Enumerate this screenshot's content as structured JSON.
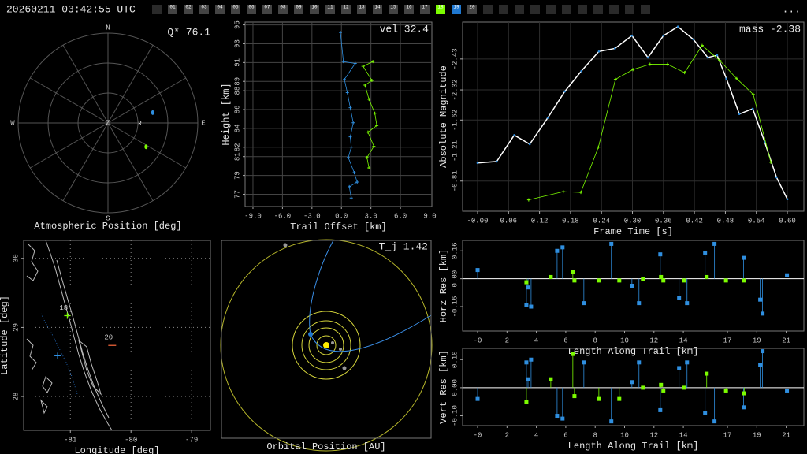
{
  "header": {
    "timestamp": "20260211 03:42:55 UTC",
    "stations": [
      {
        "label": "01"
      },
      {
        "label": "02"
      },
      {
        "label": "03"
      },
      {
        "label": "04"
      },
      {
        "label": "05"
      },
      {
        "label": "06"
      },
      {
        "label": "07"
      },
      {
        "label": "08"
      },
      {
        "label": "09"
      },
      {
        "label": "10"
      },
      {
        "label": "11"
      },
      {
        "label": "12"
      },
      {
        "label": "13"
      },
      {
        "label": "14"
      },
      {
        "label": "15"
      },
      {
        "label": "16"
      },
      {
        "label": "17"
      },
      {
        "label": "18",
        "color": "#7cfc00"
      },
      {
        "label": "19",
        "color": "#1f78d1"
      },
      {
        "label": "20"
      }
    ],
    "menu": "..."
  },
  "chart_data": [
    {
      "type": "polar",
      "title": "Atmospheric Position [deg]",
      "annotation": "Q* 76.1",
      "directions": [
        "N",
        "E",
        "S",
        "W"
      ],
      "zenith": "Z",
      "radiant": {
        "label": "R",
        "azimuth": 91,
        "altitude": 58
      },
      "series": [
        {
          "color": "#2f8fe0",
          "azimuth": [
            77
          ],
          "altitude": [
            44
          ]
        },
        {
          "color": "#7cfc00",
          "azimuth": [
            122
          ],
          "altitude": [
            45
          ]
        }
      ]
    },
    {
      "type": "line",
      "annotation": "vel 32.4",
      "xlabel": "Trail Offset [km]",
      "ylabel": "Height [km]",
      "xlim": [
        -9.8,
        9.2
      ],
      "ylim": [
        75.7,
        95.3
      ],
      "xticks": [
        {
          "value": -9,
          "label": "-9.0"
        },
        {
          "value": -6,
          "label": "-6.0"
        },
        {
          "value": -3,
          "label": "-3.0"
        },
        {
          "value": 0,
          "label": "0.0"
        },
        {
          "value": 3,
          "label": "3.0"
        },
        {
          "value": 6,
          "label": "6.0"
        },
        {
          "value": 9,
          "label": "9.0"
        }
      ],
      "yticks": [
        77,
        79,
        81,
        82,
        84,
        86,
        88,
        89,
        91,
        93,
        95
      ],
      "grid": true,
      "series": [
        {
          "color": "#2f8fe0",
          "x": [
            -0.1,
            0.2,
            1.4,
            0.3,
            0.6,
            0.9,
            1.2,
            0.9,
            1.0,
            0.7,
            1.3,
            1.6,
            0.8,
            1.0
          ],
          "values": [
            94.2,
            91.1,
            90.9,
            89.2,
            87.8,
            86.2,
            84.6,
            83.1,
            82.0,
            80.9,
            79.3,
            78.3,
            77.8,
            76.6
          ]
        },
        {
          "color": "#7cfc00",
          "x": [
            3.2,
            2.2,
            3.1,
            2.4,
            2.8,
            3.4,
            3.6,
            2.7,
            3.3,
            2.6,
            2.8
          ],
          "values": [
            91.1,
            90.6,
            89.1,
            88.6,
            87.1,
            85.6,
            84.3,
            83.6,
            82.1,
            80.9,
            79.8
          ]
        }
      ]
    },
    {
      "type": "line",
      "annotation": "mass -2.38",
      "xlabel": "Frame Time [s]",
      "ylabel": "Absolute Magnitude",
      "xlim": [
        -0.029,
        0.632
      ],
      "ylim": [
        -0.41,
        -2.92
      ],
      "xticks": [
        {
          "value": 0,
          "label": "-0.00"
        },
        0.06,
        0.12,
        0.18,
        0.24,
        {
          "value": 0.3,
          "label": "0.30"
        },
        0.36,
        0.42,
        0.48,
        0.54,
        {
          "value": 0.6,
          "label": "0.60"
        }
      ],
      "yticks": [
        -2.43,
        -2.02,
        -1.62,
        -1.21,
        -0.81
      ],
      "grid": true,
      "series": [
        {
          "color": "#ffffff",
          "marker_color": "#2f8fe0",
          "x": [
            0,
            0.037,
            0.071,
            0.101,
            0.136,
            0.169,
            0.201,
            0.235,
            0.266,
            0.299,
            0.33,
            0.36,
            0.388,
            0.418,
            0.446,
            0.464,
            0.482,
            0.507,
            0.533,
            0.556,
            0.579,
            0.6
          ],
          "values": [
            -1.05,
            -1.07,
            -1.42,
            -1.3,
            -1.65,
            -2.0,
            -2.27,
            -2.53,
            -2.57,
            -2.74,
            -2.45,
            -2.74,
            -2.86,
            -2.69,
            -2.45,
            -2.48,
            -2.17,
            -1.7,
            -1.77,
            -1.33,
            -0.86,
            -0.57
          ]
        },
        {
          "color": "#7cfc00",
          "x": [
            0.099,
            0.166,
            0.2,
            0.234,
            0.267,
            0.301,
            0.334,
            0.368,
            0.401,
            0.435,
            0.469,
            0.502,
            0.534,
            0.568
          ],
          "values": [
            -0.56,
            -0.67,
            -0.66,
            -1.26,
            -2.16,
            -2.29,
            -2.36,
            -2.36,
            -2.25,
            -2.61,
            -2.41,
            -2.17,
            -1.96,
            -1.06
          ]
        }
      ]
    },
    {
      "type": "scatter",
      "xlabel": "Longitude [deg]",
      "ylabel": "Latitude [deg]",
      "xlim": [
        -81.77,
        -78.69
      ],
      "ylim": [
        27.51,
        30.26
      ],
      "xticks": [
        -81,
        -80,
        -79
      ],
      "yticks": [
        28,
        29,
        30
      ],
      "grid": true,
      "series": [
        {
          "color": "#7cfc00",
          "marker": "+",
          "x": [
            -81.05
          ],
          "values": [
            29.17
          ],
          "labels": [
            "18"
          ]
        },
        {
          "color": "#2f8fe0",
          "marker": "+",
          "x": [
            -81.21
          ],
          "values": [
            28.59
          ]
        },
        {
          "color": "#ff6a3d",
          "marker": "-",
          "x": [
            -80.31
          ],
          "values": [
            28.74
          ],
          "labels": [
            "20"
          ]
        }
      ]
    },
    {
      "type": "orbit",
      "title": "Orbital Position [AU]",
      "annotation": "T_j 1.42"
    },
    {
      "type": "stem",
      "xlabel": "Length Along Trail [km]",
      "ylabel": "Horz Res [km]",
      "xlim": [
        -1.02,
        22.2
      ],
      "ylim": [
        -0.3,
        0.22
      ],
      "xticks": [
        {
          "value": 0,
          "label": "-0"
        },
        2,
        4,
        6,
        8,
        10,
        12,
        14,
        17,
        19,
        21
      ],
      "yticks": [
        -0.16,
        {
          "value": 0,
          "label": "0.00"
        },
        0.16
      ],
      "series": [
        {
          "color": "#2f8fe0",
          "x": [
            0,
            3.32,
            3.43,
            3.64,
            5.41,
            5.78,
            7.23,
            9.1,
            10.5,
            10.98,
            12.43,
            13.71,
            14.25,
            15.48,
            16.12,
            18.1,
            19.23,
            19.39,
            21.05
          ],
          "values": [
            0.05,
            -0.15,
            -0.05,
            -0.16,
            0.16,
            0.18,
            -0.14,
            0.2,
            -0.04,
            -0.14,
            0.14,
            -0.11,
            -0.14,
            0.15,
            0.2,
            0.12,
            -0.12,
            -0.2,
            0.02
          ]
        },
        {
          "color": "#7cfc00",
          "x": [
            3.32,
            4.98,
            6.48,
            6.59,
            8.25,
            9.64,
            11.25,
            12.48,
            12.64,
            14.03,
            15.59,
            16.9,
            18.14
          ],
          "values": [
            -0.02,
            0.01,
            0.04,
            -0.01,
            -0.01,
            -0.01,
            0,
            0.01,
            -0.01,
            -0.01,
            0.01,
            -0.01,
            -0.01
          ]
        }
      ]
    },
    {
      "type": "stem",
      "xlabel": "Length Along Trail [km]",
      "ylabel": "Vert Res [km]",
      "xlim": [
        -1.02,
        22.2
      ],
      "ylim": [
        -0.135,
        0.14
      ],
      "xticks": [
        {
          "value": 0,
          "label": "-0"
        },
        2,
        4,
        6,
        8,
        10,
        12,
        14,
        17,
        19,
        21
      ],
      "yticks": [
        {
          "value": -0.1,
          "label": "-0.10"
        },
        {
          "value": 0,
          "label": "0.00"
        },
        {
          "value": 0.1,
          "label": "0.10"
        }
      ],
      "series": [
        {
          "color": "#2f8fe0",
          "x": [
            0,
            3.32,
            3.43,
            3.64,
            5.41,
            5.78,
            7.23,
            9.1,
            10.5,
            10.98,
            12.43,
            13.71,
            14.25,
            15.48,
            16.12,
            18.1,
            19.23,
            19.39,
            21.05
          ],
          "values": [
            -0.04,
            0.09,
            0.03,
            0.1,
            -0.1,
            -0.11,
            0.09,
            -0.12,
            0.02,
            0.09,
            -0.08,
            0.07,
            0.09,
            -0.09,
            -0.12,
            -0.07,
            0.08,
            0.13,
            -0.01
          ]
        },
        {
          "color": "#7cfc00",
          "x": [
            3.32,
            4.98,
            6.48,
            6.59,
            8.25,
            9.64,
            11.25,
            12.48,
            12.64,
            14.03,
            15.59,
            16.9,
            18.14
          ],
          "values": [
            -0.05,
            0.03,
            0.12,
            -0.03,
            -0.04,
            -0.04,
            0,
            0.01,
            -0.01,
            0,
            0.05,
            -0.01,
            -0.02
          ]
        }
      ]
    }
  ]
}
